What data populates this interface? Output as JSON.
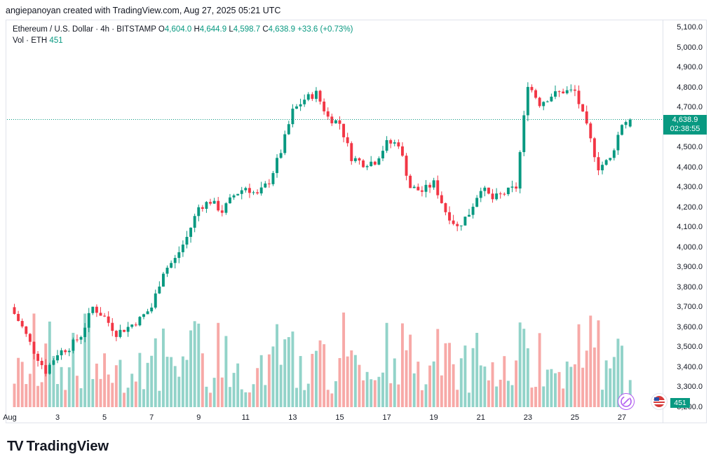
{
  "header": {
    "author_line": "angiepanoyan created with TradingView.com, Aug 27, 2025 05:21 UTC"
  },
  "legend": {
    "symbol": "Ethereum / U.S. Dollar · 4h · BITSTAMP",
    "o_label": "O",
    "o_value": "4,604.0",
    "h_label": "H",
    "h_value": "4,644.9",
    "l_label": "L",
    "l_value": "4,598.7",
    "c_label": "C",
    "c_value": "4,638.9",
    "change": "+33.6 (+0.73%)",
    "vol_label": "Vol · ETH",
    "vol_value": "451"
  },
  "price_axis": [
    "5,100.0",
    "5,000.0",
    "4,900.0",
    "4,800.0",
    "4,700.0",
    "4,600.0",
    "4,500.0",
    "4,400.0",
    "4,300.0",
    "4,200.0",
    "4,100.0",
    "4,000.0",
    "3,900.0",
    "3,800.0",
    "3,700.0",
    "3,600.0",
    "3,500.0",
    "3,400.0",
    "3,300.0",
    "3,200.0"
  ],
  "date_axis": [
    "Aug",
    "3",
    "5",
    "7",
    "9",
    "11",
    "13",
    "15",
    "17",
    "19",
    "21",
    "23",
    "25",
    "27"
  ],
  "last_price": {
    "price": "4,638.9",
    "countdown": "02:38:55"
  },
  "volume_badge": "451",
  "logo_text": "TradingView",
  "colors": {
    "up": "#089981",
    "down": "#f23645",
    "up_vol": "#92d3c9",
    "down_vol": "#f7a9a7"
  },
  "chart_data": {
    "type": "candlestick",
    "title": "Ethereum / U.S. Dollar · 4h · BITSTAMP",
    "ylim": [
      3200,
      5100
    ],
    "x_ticks": [
      "Aug",
      "3",
      "5",
      "7",
      "9",
      "11",
      "13",
      "15",
      "17",
      "19",
      "21",
      "23",
      "25",
      "27"
    ],
    "close_path": [
      [
        1.0,
        3700
      ],
      [
        1.5,
        3600
      ],
      [
        2.0,
        3480
      ],
      [
        2.5,
        3380
      ],
      [
        3.0,
        3470
      ],
      [
        3.5,
        3500
      ],
      [
        4.0,
        3560
      ],
      [
        4.5,
        3700
      ],
      [
        5.0,
        3650
      ],
      [
        5.5,
        3570
      ],
      [
        6.0,
        3600
      ],
      [
        6.5,
        3640
      ],
      [
        7.0,
        3700
      ],
      [
        7.5,
        3880
      ],
      [
        8.0,
        3940
      ],
      [
        8.5,
        4050
      ],
      [
        9.0,
        4200
      ],
      [
        9.5,
        4230
      ],
      [
        10.0,
        4180
      ],
      [
        10.5,
        4260
      ],
      [
        11.0,
        4300
      ],
      [
        11.5,
        4260
      ],
      [
        12.0,
        4330
      ],
      [
        12.5,
        4480
      ],
      [
        13.0,
        4680
      ],
      [
        13.5,
        4740
      ],
      [
        14.0,
        4770
      ],
      [
        14.5,
        4650
      ],
      [
        15.0,
        4620
      ],
      [
        15.5,
        4450
      ],
      [
        16.0,
        4420
      ],
      [
        16.5,
        4430
      ],
      [
        17.0,
        4520
      ],
      [
        17.5,
        4520
      ],
      [
        18.0,
        4300
      ],
      [
        18.5,
        4280
      ],
      [
        19.0,
        4320
      ],
      [
        19.5,
        4180
      ],
      [
        20.0,
        4100
      ],
      [
        20.5,
        4170
      ],
      [
        21.0,
        4300
      ],
      [
        21.5,
        4240
      ],
      [
        22.0,
        4270
      ],
      [
        22.5,
        4300
      ],
      [
        23.0,
        4820
      ],
      [
        23.5,
        4720
      ],
      [
        24.0,
        4760
      ],
      [
        24.5,
        4780
      ],
      [
        25.0,
        4780
      ],
      [
        25.5,
        4600
      ],
      [
        26.0,
        4400
      ],
      [
        26.5,
        4440
      ],
      [
        27.0,
        4620
      ],
      [
        27.3,
        4638.9
      ]
    ],
    "last_candle": {
      "open": 4604.0,
      "high": 4644.9,
      "low": 4598.7,
      "close": 4638.9,
      "volume": 451
    }
  }
}
